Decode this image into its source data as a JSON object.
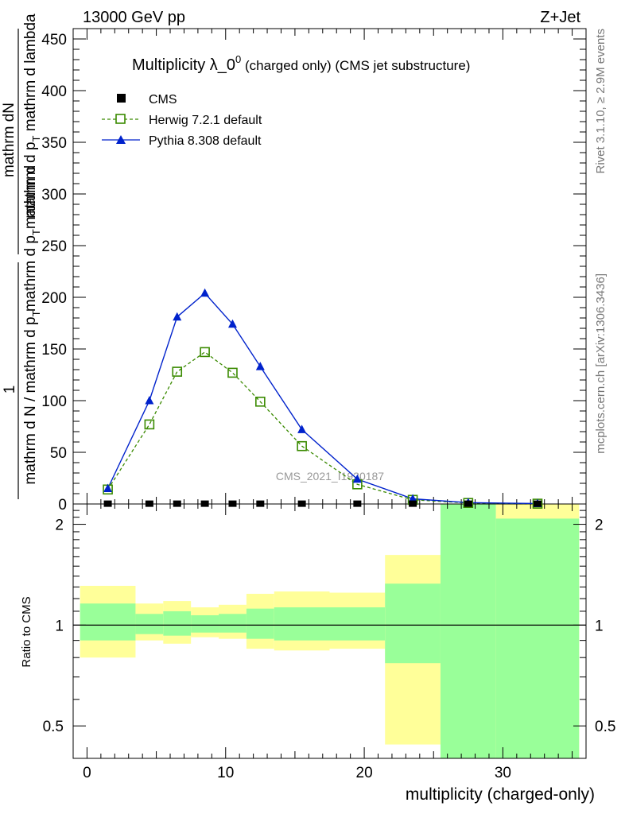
{
  "header": {
    "left": "13000 GeV pp",
    "right": "Z+Jet"
  },
  "side_labels": {
    "rivet": "Rivet 3.1.10, ≥ 2.9M events",
    "mcplots": "mcplots.cern.ch [arXiv:1306.3436]"
  },
  "main_title": {
    "prefix": "Multiplicity λ_0",
    "superscript": "0",
    "suffix": " (charged only) (CMS jet substructure)"
  },
  "ylabel": {
    "numerator": "mathrm dN",
    "denominator_top_a": "mathrm d p",
    "denominator_top_b": "T",
    "denominator_top_c": " mathrm d lambda",
    "one": "1",
    "lower_numerator_a": "mathrm d p",
    "lower_numerator_b": "T",
    "lower_numerator_c": "mathrm d p",
    "lower_numerator_d": "T",
    "lower_numerator_e": "mathrm d",
    "lower_denominator": "mathrm d N / mathrm d p"
  },
  "analysis_tag": "CMS_2021_I1920187",
  "ratio_ylabel": "Ratio to CMS",
  "xlabel": "multiplicity (charged-only)",
  "colors": {
    "herwig": "#3a8a00",
    "pythia": "#0022cc",
    "band_inner": "#99ff99",
    "band_outer": "#ffff99",
    "cms": "#000000"
  },
  "chart_data": {
    "type": "line",
    "xlim": [
      -1,
      36
    ],
    "ylim_main": [
      0,
      460
    ],
    "ylim_ratio": [
      0.4,
      2.3
    ],
    "x_ticks": [
      "0",
      "10",
      "20",
      "30"
    ],
    "y_ticks_main": [
      "0",
      "50",
      "100",
      "150",
      "200",
      "250",
      "300",
      "350",
      "400",
      "450"
    ],
    "y_ticks_ratio": [
      "0.5",
      "1",
      "2"
    ],
    "legend_position": "top-left",
    "series": [
      {
        "name": "CMS",
        "marker": "square-filled",
        "x": [
          1.5,
          4.5,
          6.5,
          8.5,
          10.5,
          12.5,
          15.5,
          19.5,
          23.5,
          27.5,
          32.5
        ],
        "y": [
          0.3,
          0.3,
          0.3,
          0.3,
          0.3,
          0.3,
          0.3,
          0.3,
          0.3,
          0.3,
          0.3
        ]
      },
      {
        "name": "Herwig 7.2.1 default",
        "marker": "square-open",
        "line": "dashed",
        "x": [
          1.5,
          4.5,
          6.5,
          8.5,
          10.5,
          12.5,
          15.5,
          19.5,
          23.5,
          27.5,
          32.5
        ],
        "y": [
          14,
          77,
          128,
          147,
          127,
          99,
          56,
          19,
          4,
          1,
          0.3
        ]
      },
      {
        "name": "Pythia 8.308 default",
        "marker": "triangle",
        "line": "solid",
        "x": [
          1.5,
          4.5,
          6.5,
          8.5,
          10.5,
          12.5,
          15.5,
          19.5,
          23.5,
          27.5,
          32.5
        ],
        "y": [
          15,
          100,
          181,
          204,
          174,
          133,
          72,
          24,
          5,
          1.3,
          0.4
        ]
      }
    ],
    "ratio_bands": [
      {
        "xlo": -0.5,
        "xhi": 3.5,
        "inner_lo": 0.9,
        "inner_hi": 1.16,
        "outer_lo": 0.8,
        "outer_hi": 1.31
      },
      {
        "xlo": 3.5,
        "xhi": 5.5,
        "inner_lo": 0.94,
        "inner_hi": 1.08,
        "outer_lo": 0.9,
        "outer_hi": 1.16
      },
      {
        "xlo": 5.5,
        "xhi": 7.5,
        "inner_lo": 0.93,
        "inner_hi": 1.1,
        "outer_lo": 0.88,
        "outer_hi": 1.18
      },
      {
        "xlo": 7.5,
        "xhi": 9.5,
        "inner_lo": 0.95,
        "inner_hi": 1.07,
        "outer_lo": 0.92,
        "outer_hi": 1.13
      },
      {
        "xlo": 9.5,
        "xhi": 11.5,
        "inner_lo": 0.95,
        "inner_hi": 1.08,
        "outer_lo": 0.91,
        "outer_hi": 1.15
      },
      {
        "xlo": 11.5,
        "xhi": 13.5,
        "inner_lo": 0.91,
        "inner_hi": 1.12,
        "outer_lo": 0.85,
        "outer_hi": 1.24
      },
      {
        "xlo": 13.5,
        "xhi": 17.5,
        "inner_lo": 0.9,
        "inner_hi": 1.13,
        "outer_lo": 0.84,
        "outer_hi": 1.26
      },
      {
        "xlo": 17.5,
        "xhi": 21.5,
        "inner_lo": 0.9,
        "inner_hi": 1.13,
        "outer_lo": 0.85,
        "outer_hi": 1.25
      },
      {
        "xlo": 21.5,
        "xhi": 25.5,
        "inner_lo": 0.77,
        "inner_hi": 1.33,
        "outer_lo": 0.44,
        "outer_hi": 1.62
      },
      {
        "xlo": 25.5,
        "xhi": 29.5,
        "inner_lo": 0.35,
        "inner_hi": 2.4,
        "outer_lo": 0.35,
        "outer_hi": 2.4
      },
      {
        "xlo": 29.5,
        "xhi": 35.5,
        "inner_lo": 0.35,
        "inner_hi": 2.08,
        "outer_lo": 0.35,
        "outer_hi": 2.4
      }
    ]
  }
}
